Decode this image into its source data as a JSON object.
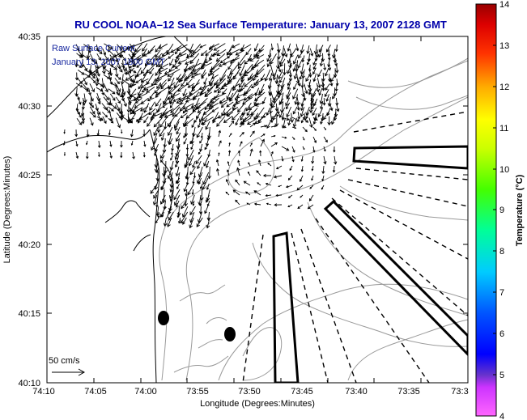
{
  "title": "RU COOL  NOAA–12  Sea Surface Temperature:  January 13, 2007 2128 GMT",
  "inset_lines": [
    "Raw Surface Current",
    "January 13, 2007 1800 GMT"
  ],
  "x_axis": {
    "label": "Longitude (Degrees:Minutes)",
    "ticks": [
      "74:10",
      "74:05",
      "74:00",
      "73:55",
      "73:50",
      "73:45",
      "73:40",
      "73:35",
      "73:3"
    ]
  },
  "y_axis": {
    "label": "Latitude (Degrees:Minutes)",
    "ticks": [
      "40:35",
      "40:30",
      "40:25",
      "40:20",
      "40:15",
      "40:10"
    ]
  },
  "scale_label": "50 cm/s",
  "colorbar": {
    "label": "Temperature (°C)",
    "ticks": [
      "14",
      "13",
      "12",
      "11",
      "10",
      "9",
      "8",
      "7",
      "6",
      "5",
      "4"
    ],
    "min": 4,
    "max": 14
  },
  "colors": {
    "title": "#0000aa",
    "inset_text": "#1a2aa0",
    "coastline": "#000000",
    "bathymetry": "#999999"
  }
}
